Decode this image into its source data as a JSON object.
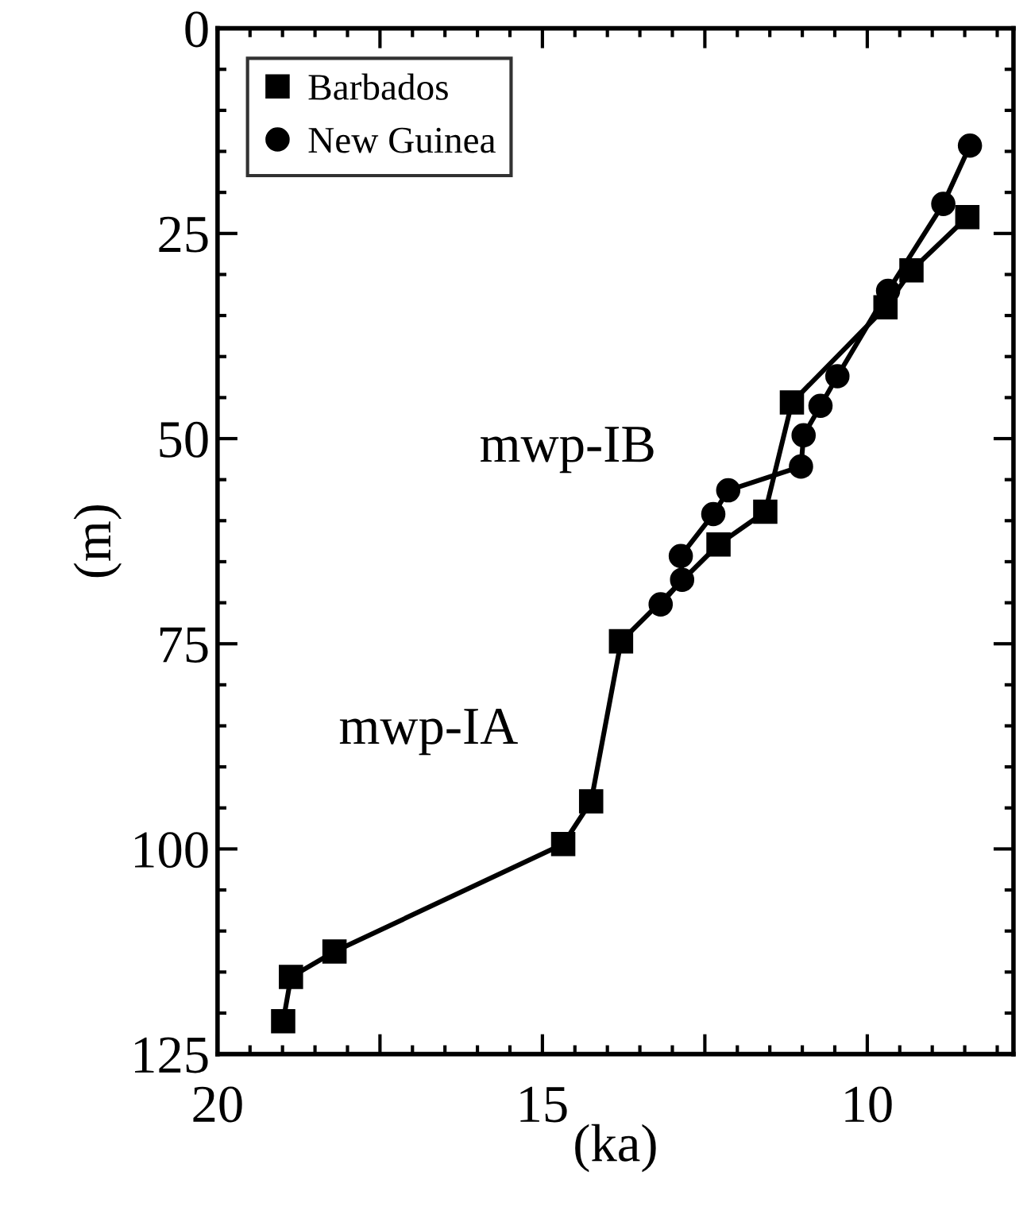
{
  "chart_data": {
    "type": "line",
    "xlabel": "(ka)",
    "ylabel": "(m)",
    "xlim": [
      20,
      7.75
    ],
    "ylim": [
      125,
      0
    ],
    "xticks": [
      20,
      {
        "value": 17.5,
        "label": null
      },
      15,
      {
        "value": 12.5,
        "label": null
      },
      10
    ],
    "yticks": [
      0,
      25,
      50,
      75,
      100,
      125
    ],
    "grid": false,
    "legend": "top left",
    "series": [
      {
        "name": "Barbados",
        "color": "#000000",
        "marker": "square",
        "x": [
          18.99,
          18.87,
          18.2,
          14.68,
          14.25,
          13.79,
          12.29,
          11.57,
          11.16,
          9.72,
          9.32,
          8.46
        ],
        "values": [
          121,
          115.6,
          112.5,
          99.4,
          94.2,
          74.7,
          62.9,
          58.9,
          45.6,
          34.0,
          29.5,
          23.0
        ]
      },
      {
        "name": "New Guinea",
        "color": "#000000",
        "marker": "circle",
        "x": [
          13.18,
          12.85,
          12.87,
          12.37,
          12.14,
          11.02,
          10.98,
          10.72,
          10.46,
          9.68,
          8.83,
          8.42
        ],
        "values": [
          70.2,
          67.2,
          64.3,
          59.2,
          56.3,
          53.4,
          49.6,
          46,
          42.4,
          32.0,
          21.4,
          14.3
        ]
      }
    ],
    "annotations": [
      "mwp-IB",
      "mwp-IA"
    ]
  }
}
